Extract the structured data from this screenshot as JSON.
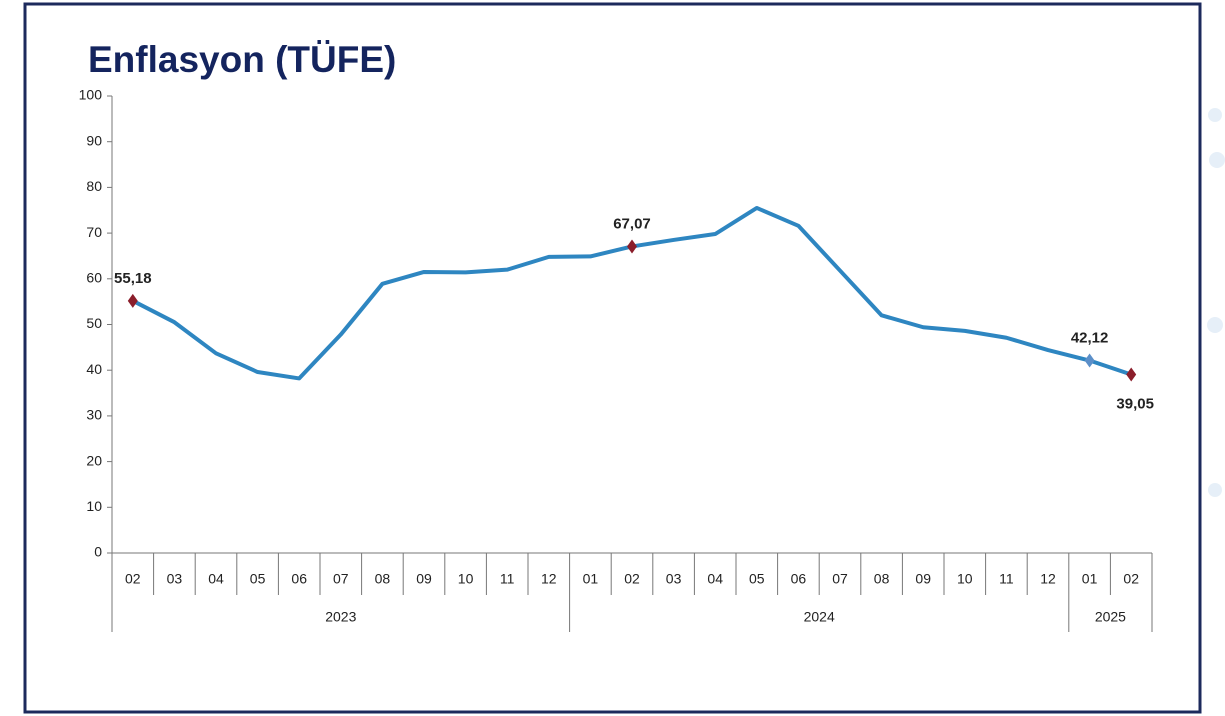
{
  "chart_data": {
    "type": "line",
    "title": "Enflasyon (TÜFE)",
    "groups": [
      {
        "label": "2023",
        "categories": [
          "02",
          "03",
          "04",
          "05",
          "06",
          "07",
          "08",
          "09",
          "10",
          "11",
          "12"
        ]
      },
      {
        "label": "2024",
        "categories": [
          "01",
          "02",
          "03",
          "04",
          "05",
          "06",
          "07",
          "08",
          "09",
          "10",
          "11",
          "12"
        ]
      },
      {
        "label": "2025",
        "categories": [
          "01",
          "02"
        ]
      }
    ],
    "series": [
      {
        "color": "#2e86c1",
        "values": [
          55.18,
          50.5,
          43.7,
          39.6,
          38.2,
          47.8,
          58.9,
          61.5,
          61.4,
          62.0,
          64.8,
          64.9,
          67.07,
          68.5,
          69.8,
          75.5,
          71.6,
          61.8,
          52.0,
          49.4,
          48.6,
          47.1,
          44.4,
          42.12,
          39.05
        ],
        "value_labels": [
          "55,18",
          null,
          null,
          null,
          null,
          null,
          null,
          null,
          null,
          null,
          null,
          null,
          "67,07",
          null,
          null,
          null,
          null,
          null,
          null,
          null,
          null,
          null,
          null,
          "42,12",
          "39,05"
        ],
        "marker_colors": [
          "#8b1e2b",
          null,
          null,
          null,
          null,
          null,
          null,
          null,
          null,
          null,
          null,
          null,
          "#8b1e2b",
          null,
          null,
          null,
          null,
          null,
          null,
          null,
          null,
          null,
          null,
          "#5b8fc9",
          "#8b1e2b"
        ]
      }
    ],
    "ylim": [
      0,
      100
    ],
    "yticks": [
      0,
      10,
      20,
      30,
      40,
      50,
      60,
      70,
      80,
      90,
      100
    ]
  }
}
